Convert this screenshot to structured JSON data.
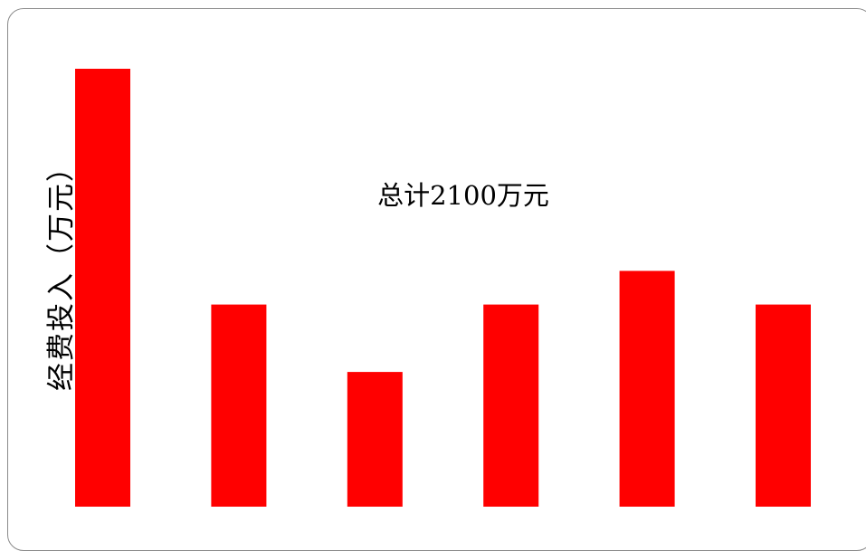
{
  "chart_data": {
    "type": "bar",
    "categories": [
      "",
      "",
      "",
      "",
      "",
      ""
    ],
    "values": [
      650,
      300,
      200,
      300,
      350,
      300
    ],
    "ylabel": "经费投入（万元）",
    "xlabel": "",
    "title": "",
    "annotation": "总计2100万元",
    "ylim": [
      0,
      650
    ],
    "bar_color": "#ff0000",
    "grid": false,
    "legend": "none"
  }
}
